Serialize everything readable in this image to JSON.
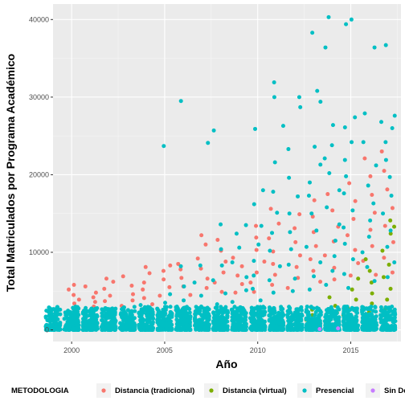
{
  "chart_data": {
    "type": "scatter",
    "title": "",
    "xlabel": "Año",
    "ylabel": "Total Matriculados por Programa Académico",
    "xlim": [
      1999.0,
      2017.7
    ],
    "ylim": [
      -1500,
      42000
    ],
    "x_ticks": [
      2000,
      2005,
      2010,
      2015
    ],
    "y_ticks": [
      0,
      10000,
      20000,
      30000,
      40000
    ],
    "y_tick_labels": [
      "0",
      "10000",
      "20000",
      "30000",
      "40000"
    ],
    "grid": true,
    "legend": {
      "title": "METODOLOGIA",
      "position": "bottom"
    },
    "series": [
      {
        "name": "Distancia (tradicional)",
        "color": "#F8766D",
        "points": [
          [
            2000,
            5800
          ],
          [
            2000,
            5200
          ],
          [
            2000,
            4500
          ],
          [
            2000,
            3900
          ],
          [
            2000,
            3400
          ],
          [
            2000,
            2800
          ],
          [
            2001,
            5600
          ],
          [
            2001,
            4800
          ],
          [
            2001,
            4200
          ],
          [
            2001,
            3600
          ],
          [
            2001,
            3000
          ],
          [
            2002,
            6600
          ],
          [
            2002,
            6200
          ],
          [
            2002,
            5300
          ],
          [
            2002,
            4400
          ],
          [
            2002,
            3700
          ],
          [
            2003,
            6900
          ],
          [
            2003,
            5700
          ],
          [
            2003,
            4600
          ],
          [
            2003,
            3800
          ],
          [
            2003,
            3100
          ],
          [
            2004,
            8100
          ],
          [
            2004,
            7300
          ],
          [
            2004,
            6100
          ],
          [
            2004,
            5200
          ],
          [
            2004,
            4100
          ],
          [
            2004,
            3300
          ],
          [
            2005,
            8300
          ],
          [
            2005,
            7600
          ],
          [
            2005,
            6500
          ],
          [
            2005,
            5500
          ],
          [
            2005,
            4400
          ],
          [
            2006,
            8500
          ],
          [
            2006,
            7800
          ],
          [
            2006,
            6700
          ],
          [
            2006,
            5600
          ],
          [
            2006,
            4500
          ],
          [
            2007,
            12200
          ],
          [
            2007,
            11000
          ],
          [
            2007,
            9200
          ],
          [
            2007,
            7900
          ],
          [
            2007,
            6600
          ],
          [
            2007,
            5400
          ],
          [
            2008,
            11600
          ],
          [
            2008,
            10200
          ],
          [
            2008,
            8800
          ],
          [
            2008,
            7400
          ],
          [
            2008,
            6100
          ],
          [
            2008,
            4900
          ],
          [
            2009,
            9300
          ],
          [
            2009,
            8200
          ],
          [
            2009,
            7000
          ],
          [
            2009,
            5900
          ],
          [
            2009,
            4800
          ],
          [
            2010,
            13400
          ],
          [
            2010,
            11900
          ],
          [
            2010,
            10300
          ],
          [
            2010,
            8800
          ],
          [
            2010,
            7400
          ],
          [
            2010,
            6100
          ],
          [
            2010,
            4900
          ],
          [
            2011,
            15600
          ],
          [
            2011,
            13700
          ],
          [
            2011,
            11800
          ],
          [
            2011,
            10100
          ],
          [
            2011,
            8500
          ],
          [
            2011,
            7100
          ],
          [
            2011,
            5800
          ],
          [
            2012,
            14900
          ],
          [
            2012,
            13100
          ],
          [
            2012,
            11300
          ],
          [
            2012,
            9600
          ],
          [
            2012,
            8100
          ],
          [
            2012,
            6700
          ],
          [
            2012,
            5400
          ],
          [
            2013,
            16700
          ],
          [
            2013,
            14600
          ],
          [
            2013,
            12600
          ],
          [
            2013,
            10800
          ],
          [
            2013,
            9100
          ],
          [
            2013,
            7600
          ],
          [
            2013,
            6200
          ],
          [
            2014,
            17500
          ],
          [
            2014,
            15400
          ],
          [
            2014,
            13300
          ],
          [
            2014,
            11400
          ],
          [
            2014,
            9600
          ],
          [
            2014,
            8000
          ],
          [
            2014,
            6500
          ],
          [
            2015,
            18900
          ],
          [
            2015,
            16600
          ],
          [
            2015,
            14300
          ],
          [
            2015,
            12200
          ],
          [
            2015,
            10300
          ],
          [
            2015,
            8600
          ],
          [
            2015,
            7000
          ],
          [
            2016,
            22100
          ],
          [
            2016,
            19800
          ],
          [
            2016,
            17400
          ],
          [
            2016,
            15100
          ],
          [
            2016,
            12900
          ],
          [
            2016,
            10800
          ],
          [
            2016,
            8900
          ],
          [
            2016,
            7100
          ],
          [
            2017,
            23000
          ],
          [
            2017,
            20500
          ],
          [
            2017,
            18100
          ],
          [
            2017,
            15700
          ],
          [
            2017,
            13400
          ],
          [
            2017,
            11300
          ],
          [
            2017,
            9300
          ],
          [
            2017,
            7400
          ]
        ]
      },
      {
        "name": "Distancia (virtual)",
        "color": "#7CAE00",
        "points": [
          [
            2013,
            2600
          ],
          [
            2013,
            1900
          ],
          [
            2013,
            1300
          ],
          [
            2014,
            4200
          ],
          [
            2014,
            3100
          ],
          [
            2014,
            2200
          ],
          [
            2014,
            1500
          ],
          [
            2015,
            6600
          ],
          [
            2015,
            5200
          ],
          [
            2015,
            3900
          ],
          [
            2015,
            2800
          ],
          [
            2015,
            1900
          ],
          [
            2016,
            9100
          ],
          [
            2016,
            7600
          ],
          [
            2016,
            6100
          ],
          [
            2016,
            4700
          ],
          [
            2016,
            3400
          ],
          [
            2016,
            2300
          ],
          [
            2017,
            14100
          ],
          [
            2017,
            13300
          ],
          [
            2017,
            12400
          ],
          [
            2017,
            10200
          ],
          [
            2017,
            8400
          ],
          [
            2017,
            6800
          ],
          [
            2017,
            5300
          ],
          [
            2017,
            3900
          ],
          [
            2017,
            2700
          ]
        ]
      },
      {
        "name": "Presencial",
        "color": "#00BFC4",
        "points": [
          [
            2000,
            2500
          ],
          [
            2000,
            1800
          ],
          [
            2000,
            1200
          ],
          [
            2001,
            2400
          ],
          [
            2001,
            1700
          ],
          [
            2002,
            2700
          ],
          [
            2002,
            1900
          ],
          [
            2003,
            2900
          ],
          [
            2003,
            2000
          ],
          [
            2004,
            3200
          ],
          [
            2004,
            2300
          ],
          [
            2005,
            23700
          ],
          [
            2005,
            4600
          ],
          [
            2005,
            3500
          ],
          [
            2005,
            2500
          ],
          [
            2006,
            29500
          ],
          [
            2006,
            8200
          ],
          [
            2006,
            5600
          ],
          [
            2006,
            3800
          ],
          [
            2006,
            2600
          ],
          [
            2007,
            24100
          ],
          [
            2007,
            8300
          ],
          [
            2007,
            6100
          ],
          [
            2007,
            4400
          ],
          [
            2007,
            3000
          ],
          [
            2008,
            25700
          ],
          [
            2008,
            13600
          ],
          [
            2008,
            10400
          ],
          [
            2008,
            8300
          ],
          [
            2008,
            6400
          ],
          [
            2008,
            4700
          ],
          [
            2008,
            3300
          ],
          [
            2009,
            13500
          ],
          [
            2009,
            12400
          ],
          [
            2009,
            10600
          ],
          [
            2009,
            8700
          ],
          [
            2009,
            6800
          ],
          [
            2009,
            5100
          ],
          [
            2009,
            3600
          ],
          [
            2010,
            25900
          ],
          [
            2010,
            18000
          ],
          [
            2010,
            16200
          ],
          [
            2010,
            13400
          ],
          [
            2010,
            11000
          ],
          [
            2010,
            8900
          ],
          [
            2010,
            7000
          ],
          [
            2010,
            5300
          ],
          [
            2010,
            3800
          ],
          [
            2011,
            31900
          ],
          [
            2011,
            30000
          ],
          [
            2011,
            26300
          ],
          [
            2011,
            21600
          ],
          [
            2011,
            17800
          ],
          [
            2011,
            15100
          ],
          [
            2011,
            12500
          ],
          [
            2011,
            10200
          ],
          [
            2011,
            8200
          ],
          [
            2011,
            6400
          ],
          [
            2011,
            4800
          ],
          [
            2012,
            30000
          ],
          [
            2012,
            28700
          ],
          [
            2012,
            23300
          ],
          [
            2012,
            19600
          ],
          [
            2012,
            17200
          ],
          [
            2012,
            15000
          ],
          [
            2012,
            12600
          ],
          [
            2012,
            10400
          ],
          [
            2012,
            8400
          ],
          [
            2012,
            6600
          ],
          [
            2012,
            5000
          ],
          [
            2013,
            38300
          ],
          [
            2013,
            30800
          ],
          [
            2013,
            29400
          ],
          [
            2013,
            23600
          ],
          [
            2013,
            21300
          ],
          [
            2013,
            19000
          ],
          [
            2013,
            17300
          ],
          [
            2013,
            15000
          ],
          [
            2013,
            12800
          ],
          [
            2013,
            10700
          ],
          [
            2013,
            8700
          ],
          [
            2013,
            6900
          ],
          [
            2013,
            5200
          ],
          [
            2014,
            40300
          ],
          [
            2014,
            36400
          ],
          [
            2014,
            26400
          ],
          [
            2014,
            23800
          ],
          [
            2014,
            22100
          ],
          [
            2014,
            20200
          ],
          [
            2014,
            18000
          ],
          [
            2014,
            15800
          ],
          [
            2014,
            13600
          ],
          [
            2014,
            11500
          ],
          [
            2014,
            9500
          ],
          [
            2014,
            7600
          ],
          [
            2014,
            5800
          ],
          [
            2015,
            40000
          ],
          [
            2015,
            39400
          ],
          [
            2015,
            27400
          ],
          [
            2015,
            26100
          ],
          [
            2015,
            24200
          ],
          [
            2015,
            21900
          ],
          [
            2015,
            19800
          ],
          [
            2015,
            17600
          ],
          [
            2015,
            15400
          ],
          [
            2015,
            13200
          ],
          [
            2015,
            11100
          ],
          [
            2015,
            9100
          ],
          [
            2015,
            7200
          ],
          [
            2015,
            5400
          ],
          [
            2016,
            36400
          ],
          [
            2016,
            27900
          ],
          [
            2016,
            24200
          ],
          [
            2016,
            21200
          ],
          [
            2016,
            18600
          ],
          [
            2016,
            16300
          ],
          [
            2016,
            14100
          ],
          [
            2016,
            12000
          ],
          [
            2016,
            10000
          ],
          [
            2016,
            8100
          ],
          [
            2016,
            6300
          ],
          [
            2017,
            36700
          ],
          [
            2017,
            27600
          ],
          [
            2017,
            26800
          ],
          [
            2017,
            26000
          ],
          [
            2017,
            24200
          ],
          [
            2017,
            21900
          ],
          [
            2017,
            19700
          ],
          [
            2017,
            17300
          ],
          [
            2017,
            15000
          ],
          [
            2017,
            12800
          ],
          [
            2017,
            10700
          ],
          [
            2017,
            8700
          ],
          [
            2017,
            6800
          ]
        ],
        "dense_band": {
          "ymin": 0,
          "ymax": 3000
        }
      },
      {
        "name": "Sin Definir",
        "color": "#C77CFF",
        "points": [
          [
            2013,
            100
          ],
          [
            2014,
            200
          ]
        ]
      }
    ]
  }
}
